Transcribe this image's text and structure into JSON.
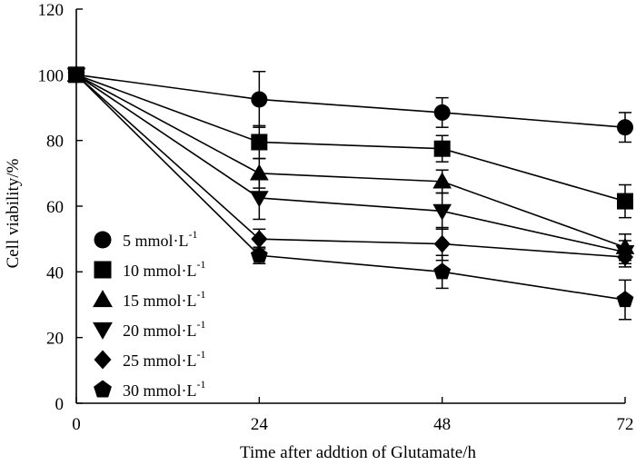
{
  "chart_data": {
    "type": "line",
    "title": "",
    "xlabel": "Time after addtion of Glutamate/h",
    "ylabel": "Cell viability/%",
    "x": [
      0,
      24,
      48,
      72
    ],
    "xticks": [
      "0",
      "24",
      "48",
      "72"
    ],
    "xlim": [
      0,
      72
    ],
    "ylim": [
      0,
      120
    ],
    "yticks": [
      "0",
      "20",
      "40",
      "60",
      "80",
      "100",
      "120"
    ],
    "grid": false,
    "legend_position": "bottom-left",
    "series": [
      {
        "name": "5 mmol·L",
        "unit_sup": "-1",
        "marker": "circle",
        "values": [
          100,
          92.5,
          88.5,
          84
        ],
        "errors": [
          0,
          8.5,
          4.5,
          4.5
        ]
      },
      {
        "name": "10 mmol·L",
        "unit_sup": "-1",
        "marker": "square",
        "values": [
          100,
          79.5,
          77.5,
          61.5
        ],
        "errors": [
          0,
          5,
          4,
          5
        ]
      },
      {
        "name": "15 mmol·L",
        "unit_sup": "-1",
        "marker": "triangle-up",
        "values": [
          100,
          70,
          67.5,
          47.5
        ],
        "errors": [
          0,
          4.5,
          3.5,
          4
        ]
      },
      {
        "name": "20 mmol·L",
        "unit_sup": "-1",
        "marker": "triangle-down",
        "values": [
          100,
          62.5,
          58.5,
          46
        ],
        "errors": [
          0,
          6.5,
          5.5,
          3.5
        ]
      },
      {
        "name": "25 mmol·L",
        "unit_sup": "-1",
        "marker": "diamond",
        "values": [
          100,
          50,
          48.5,
          44.5
        ],
        "errors": [
          0,
          3,
          5,
          3
        ]
      },
      {
        "name": "30 mmol·L",
        "unit_sup": "-1",
        "marker": "pentagon",
        "values": [
          100,
          45,
          40,
          31.5
        ],
        "errors": [
          0,
          2.5,
          5,
          6
        ]
      }
    ]
  }
}
